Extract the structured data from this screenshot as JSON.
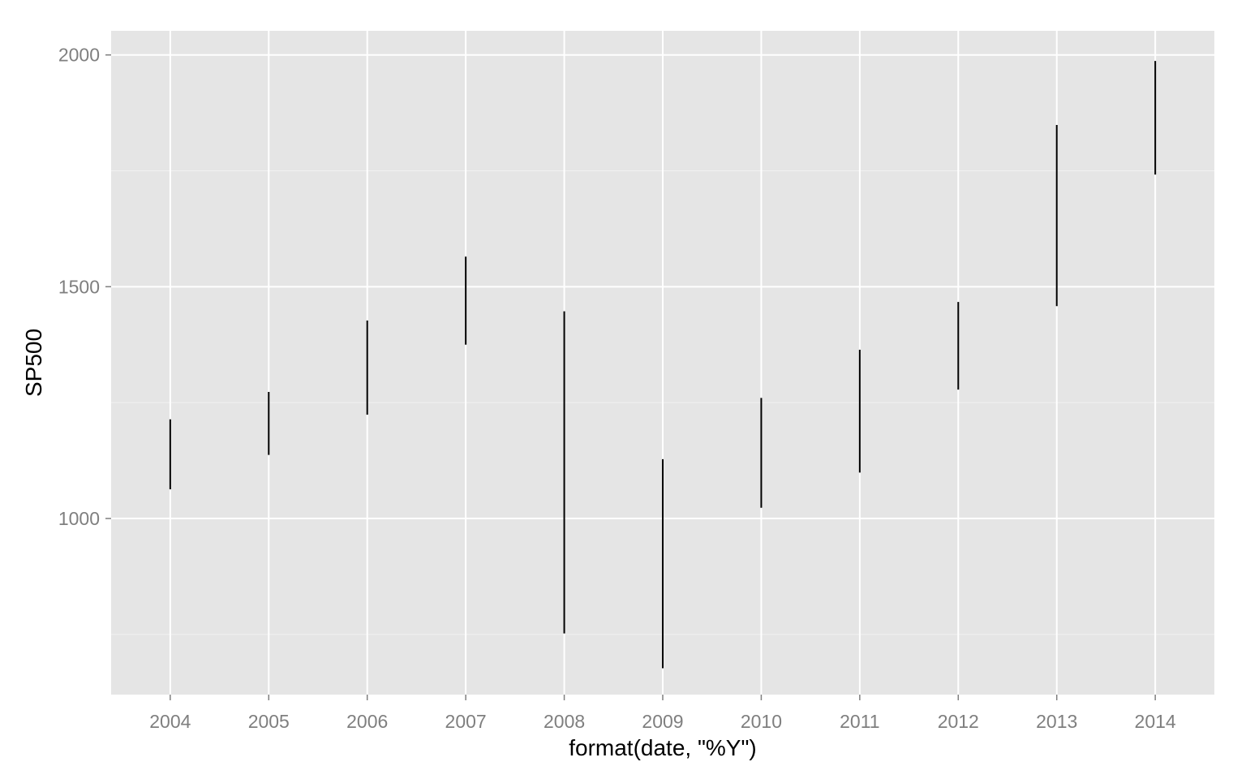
{
  "chart_data": {
    "type": "range-bar",
    "xlabel": "format(date, \"%Y\")",
    "ylabel": "SP500",
    "categories": [
      "2004",
      "2005",
      "2006",
      "2007",
      "2008",
      "2009",
      "2010",
      "2011",
      "2012",
      "2013",
      "2014"
    ],
    "series": [
      {
        "low": [
          1063,
          1137,
          1224,
          1375,
          752,
          677,
          1023,
          1099,
          1278,
          1458,
          1742
        ],
        "high": [
          1214,
          1273,
          1427,
          1565,
          1447,
          1128,
          1260,
          1364,
          1467,
          1849,
          1987
        ]
      }
    ],
    "ylim": [
      620,
      2052
    ],
    "yticks": [
      1000,
      1500,
      2000
    ],
    "ytick_labels": [
      "1000",
      "1500",
      "2000"
    ],
    "y_minor_ticks": [
      750,
      1250,
      1750
    ],
    "grid": true,
    "colors": {
      "panel": "#e5e5e5",
      "grid_major": "#ffffff",
      "grid_minor": "#f2f2f2",
      "segment": "#000000",
      "tick_text": "#7f7f7f",
      "tick_mark": "#7f7f7f"
    }
  }
}
